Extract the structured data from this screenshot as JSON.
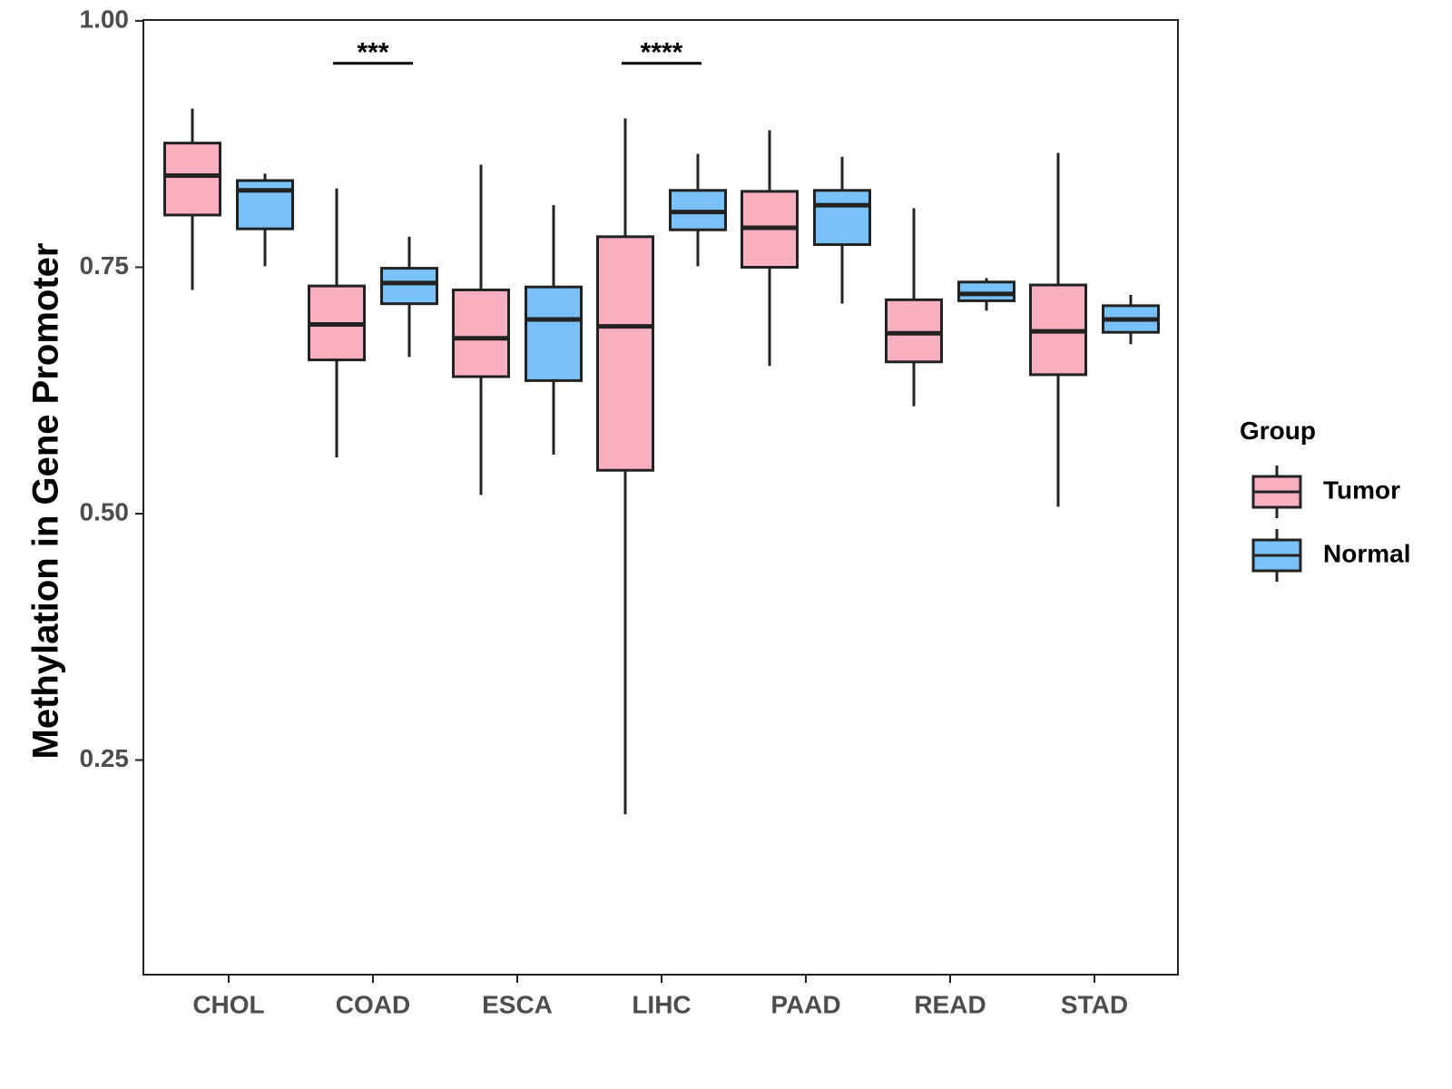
{
  "chart_data": {
    "type": "boxplot",
    "title": "",
    "xlabel": "",
    "ylabel": "Methylation in Gene Promoter",
    "ylim": [
      0.05,
      1.0
    ],
    "yticks": [
      "0.25",
      "0.50",
      "0.75",
      "1.00"
    ],
    "categories": [
      "CHOL",
      "COAD",
      "ESCA",
      "LIHC",
      "PAAD",
      "READ",
      "STAD"
    ],
    "legend": {
      "title": "Group",
      "position": "right"
    },
    "colors": {
      "Tumor": "#FBB0C1",
      "Normal": "#79C2F9",
      "stroke": "#222222"
    },
    "series": [
      {
        "name": "Tumor",
        "boxes": [
          {
            "min": 0.727,
            "q1": 0.803,
            "median": 0.843,
            "q3": 0.876,
            "max": 0.911
          },
          {
            "min": 0.557,
            "q1": 0.656,
            "median": 0.692,
            "q3": 0.731,
            "max": 0.83
          },
          {
            "min": 0.519,
            "q1": 0.639,
            "median": 0.678,
            "q3": 0.727,
            "max": 0.854
          },
          {
            "min": 0.195,
            "q1": 0.544,
            "median": 0.69,
            "q3": 0.781,
            "max": 0.901
          },
          {
            "min": 0.65,
            "q1": 0.75,
            "median": 0.79,
            "q3": 0.827,
            "max": 0.889
          },
          {
            "min": 0.609,
            "q1": 0.654,
            "median": 0.683,
            "q3": 0.717,
            "max": 0.81
          },
          {
            "min": 0.507,
            "q1": 0.641,
            "median": 0.685,
            "q3": 0.732,
            "max": 0.866
          }
        ]
      },
      {
        "name": "Normal",
        "boxes": [
          {
            "min": 0.751,
            "q1": 0.789,
            "median": 0.828,
            "q3": 0.838,
            "max": 0.845
          },
          {
            "min": 0.659,
            "q1": 0.713,
            "median": 0.734,
            "q3": 0.749,
            "max": 0.781
          },
          {
            "min": 0.56,
            "q1": 0.635,
            "median": 0.697,
            "q3": 0.73,
            "max": 0.813
          },
          {
            "min": 0.751,
            "q1": 0.788,
            "median": 0.806,
            "q3": 0.828,
            "max": 0.865
          },
          {
            "min": 0.713,
            "q1": 0.773,
            "median": 0.813,
            "q3": 0.828,
            "max": 0.862
          },
          {
            "min": 0.706,
            "q1": 0.716,
            "median": 0.723,
            "q3": 0.735,
            "max": 0.739
          },
          {
            "min": 0.672,
            "q1": 0.684,
            "median": 0.697,
            "q3": 0.711,
            "max": 0.722
          }
        ]
      }
    ],
    "annotations": [
      {
        "category": "COAD",
        "label": "***",
        "y": 0.957
      },
      {
        "category": "LIHC",
        "label": "****",
        "y": 0.957
      }
    ]
  }
}
